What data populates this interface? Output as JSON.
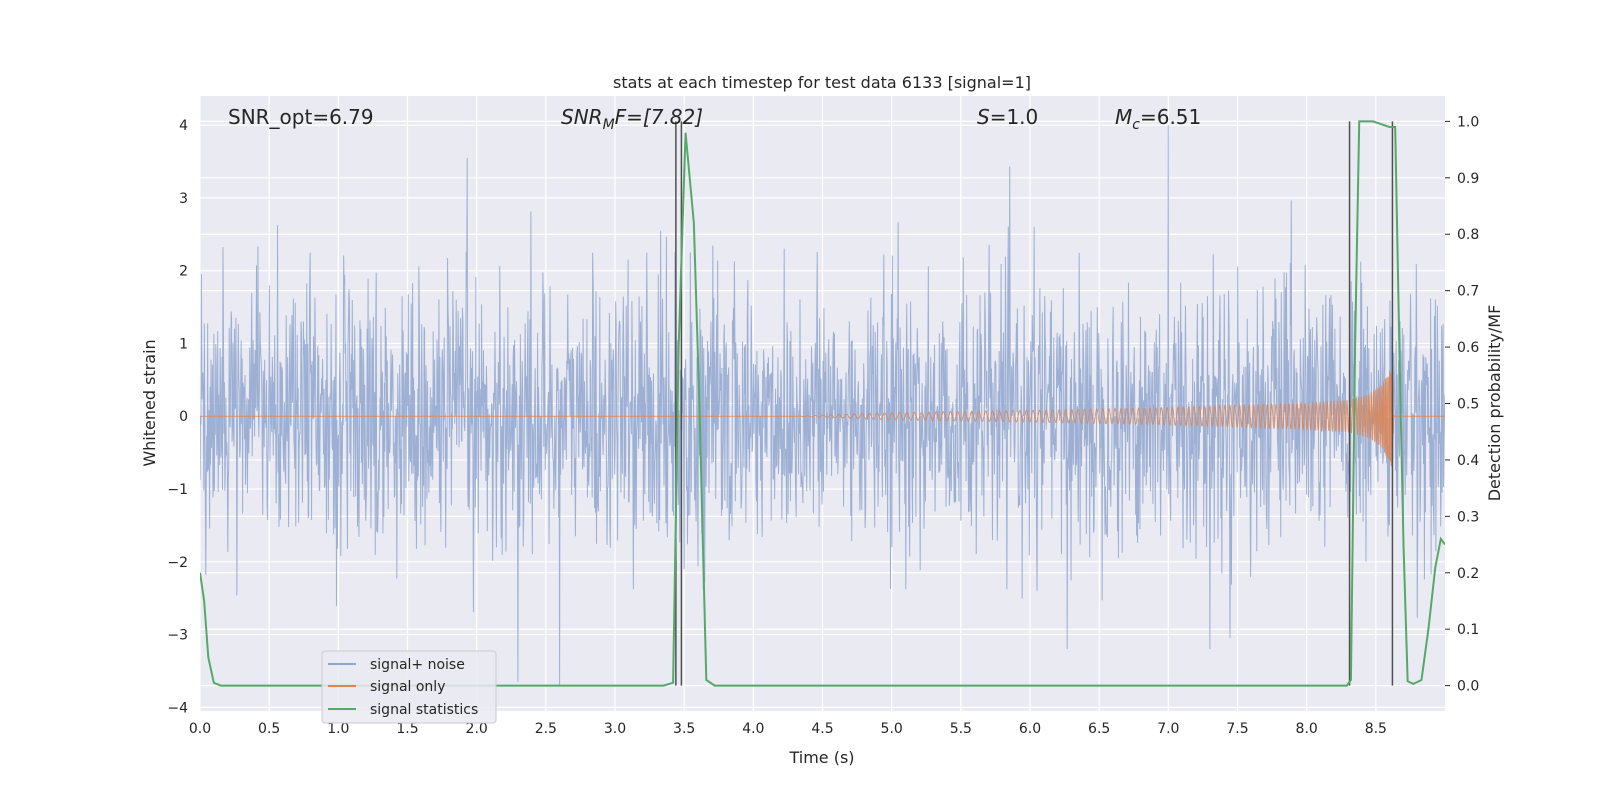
{
  "chart_data": {
    "type": "line",
    "title": "stats at each timestep for test data 6133 [signal=1]",
    "xlabel": "Time (s)",
    "ylabel_left": "Whitened strain",
    "ylabel_right": "Detection probability/MF",
    "xlim": [
      0,
      9.0
    ],
    "ylim_left": [
      -4.05,
      4.4
    ],
    "ylim_right": [
      -0.045,
      1.045
    ],
    "x_ticks": [
      0.0,
      0.5,
      1.0,
      1.5,
      2.0,
      2.5,
      3.0,
      3.5,
      4.0,
      4.5,
      5.0,
      5.5,
      6.0,
      6.5,
      7.0,
      7.5,
      8.0,
      8.5
    ],
    "x_tick_labels": [
      "0.0",
      "0.5",
      "1.0",
      "1.5",
      "2.0",
      "2.5",
      "3.0",
      "3.5",
      "4.0",
      "4.5",
      "5.0",
      "5.5",
      "6.0",
      "6.5",
      "7.0",
      "7.5",
      "8.0",
      "8.5"
    ],
    "y_left_ticks": [
      -4,
      -3,
      -2,
      -1,
      0,
      1,
      2,
      3,
      4
    ],
    "y_left_tick_labels": [
      "−4",
      "−3",
      "−2",
      "−1",
      "0",
      "1",
      "2",
      "3",
      "4"
    ],
    "y_right_ticks": [
      0.0,
      0.1,
      0.2,
      0.3,
      0.4,
      0.5,
      0.6,
      0.7,
      0.8,
      0.9,
      1.0
    ],
    "y_right_tick_labels": [
      "0.0",
      "0.1",
      "0.2",
      "0.3",
      "0.4",
      "0.5",
      "0.6",
      "0.7",
      "0.8",
      "0.9",
      "1.0"
    ],
    "grid": true,
    "legend_placement": "lower-left",
    "annotations": {
      "snr_opt": "SNR_opt=6.79",
      "snr_mf_base": "SNR",
      "snr_mf_sub": "M",
      "snr_mf_tail": "F=[7.82]",
      "s_var": "S",
      "s_tail": "=1.0",
      "mc_base": "M",
      "mc_sub": "c",
      "mc_tail": "=6.51"
    },
    "series": [
      {
        "name": "signal+ noise",
        "color": "#8fa6cf",
        "style": "noise",
        "envelope_abs_approx": 2.6,
        "notable_peaks": [
          [
            1.93,
            3.55
          ],
          [
            7.0,
            4.0
          ],
          [
            2.6,
            -3.7
          ],
          [
            2.3,
            -3.65
          ],
          [
            6.27,
            -3.2
          ],
          [
            7.3,
            -3.2
          ]
        ]
      },
      {
        "name": "signal only",
        "color": "#dd8452",
        "style": "chirp",
        "onset_time": 4.3,
        "peak_time": 8.63,
        "peak_amplitude": 0.75,
        "amplitude_profile": [
          [
            4.3,
            0.0
          ],
          [
            5.0,
            0.05
          ],
          [
            6.0,
            0.08
          ],
          [
            7.0,
            0.12
          ],
          [
            7.5,
            0.15
          ],
          [
            8.0,
            0.18
          ],
          [
            8.3,
            0.22
          ],
          [
            8.45,
            0.3
          ],
          [
            8.55,
            0.45
          ],
          [
            8.62,
            0.72
          ],
          [
            8.63,
            0.0
          ]
        ]
      },
      {
        "name": "signal statistics",
        "color": "#55a868",
        "style": "line",
        "axis": "right",
        "x": [
          0.0,
          0.03,
          0.06,
          0.1,
          0.15,
          3.35,
          3.42,
          3.46,
          3.51,
          3.57,
          3.61,
          3.66,
          3.72,
          8.25,
          8.29,
          8.32,
          8.35,
          8.38,
          8.42,
          8.48,
          8.6,
          8.64,
          8.67,
          8.7,
          8.73,
          8.77,
          8.83,
          8.88,
          8.93,
          8.97,
          9.0
        ],
        "y": [
          0.2,
          0.15,
          0.05,
          0.005,
          0.0,
          0.0,
          0.005,
          0.6,
          0.98,
          0.82,
          0.5,
          0.01,
          0.0,
          0.0,
          0.0,
          0.01,
          0.6,
          1.0,
          1.0,
          1.0,
          0.99,
          0.99,
          0.6,
          0.25,
          0.008,
          0.003,
          0.01,
          0.1,
          0.21,
          0.26,
          0.25
        ]
      }
    ],
    "vertical_lines": [
      3.44,
      3.48,
      8.31,
      8.62
    ],
    "vertical_line_color": "#505050"
  }
}
